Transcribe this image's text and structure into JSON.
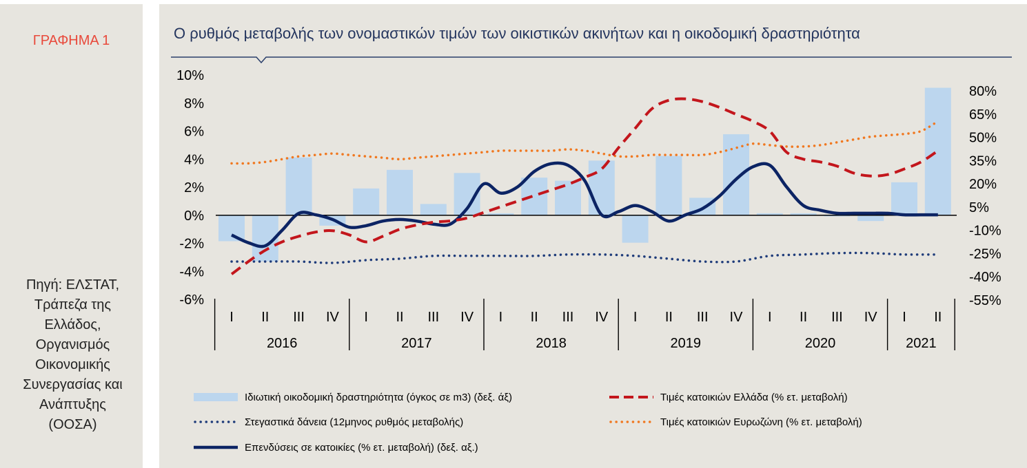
{
  "figure_label": "ΓΡΑΦΗΜΑ 1",
  "source_lines": [
    "Πηγή: ΕΛΣΤΑΤ,",
    "Τράπεζα της",
    "Ελλάδος,",
    "Οργανισμός",
    "Οικονομικής",
    "Συνεργασίας και",
    "Ανάπτυξης",
    "(ΟΟΣΑ)"
  ],
  "colors": {
    "panel_bg": "#e7e5df",
    "title": "#24355e",
    "figure_label": "#e8493b",
    "bars": "#bcd6ee",
    "greece": "#c3161c",
    "eurozone": "#f07820",
    "investment": "#0c2464",
    "loans": "#1f3c7a"
  },
  "chart_data": {
    "type": "bar",
    "title": "Ο ρυθμός μεταβολής των ονομαστικών τιμών των οικιστικών ακινήτων και η οικοδομική δραστηριότητα",
    "xlabel": "",
    "ylabel": "",
    "left_axis": {
      "ticks": [
        "10%",
        "8%",
        "6%",
        "4%",
        "2%",
        "0%",
        "-2%",
        "-4%",
        "-6%"
      ],
      "range": [
        -0.06,
        0.1
      ]
    },
    "right_axis": {
      "ticks": [
        "80%",
        "65%",
        "50%",
        "35%",
        "20%",
        "5%",
        "-10%",
        "-25%",
        "-40%",
        "-55%"
      ],
      "range": [
        -0.55,
        0.8
      ]
    },
    "quarters": [
      "I",
      "II",
      "III",
      "IV",
      "I",
      "II",
      "III",
      "IV",
      "I",
      "II",
      "III",
      "IV",
      "I",
      "II",
      "III",
      "IV",
      "I",
      "II",
      "III",
      "IV",
      "I",
      "II"
    ],
    "years": [
      {
        "label": "2016",
        "quarters": 4
      },
      {
        "label": "2017",
        "quarters": 4
      },
      {
        "label": "2018",
        "quarters": 4
      },
      {
        "label": "2019",
        "quarters": 4
      },
      {
        "label": "2020",
        "quarters": 4
      },
      {
        "label": "2021",
        "quarters": 2
      }
    ],
    "series": [
      {
        "name": "Ιδιωτική οικοδομική δραστηριότητα (όγκος σε m3) (δεξ. άξ)",
        "kind": "bar",
        "x": [
          0,
          1,
          2,
          3,
          4,
          5,
          6,
          7,
          8,
          9,
          10,
          11,
          12,
          13,
          14,
          15,
          16,
          17,
          18,
          19,
          20,
          21
        ],
        "values": [
          -0.17,
          -0.3,
          0.37,
          -0.07,
          0.17,
          0.29,
          0.07,
          0.27,
          0.01,
          0.24,
          0.22,
          0.35,
          -0.18,
          0.38,
          0.11,
          0.52,
          0.01,
          0.01,
          -0.01,
          -0.04,
          0.21,
          0.82
        ]
      },
      {
        "name": "Τιμές κατοικιών Ελλάδα (% ετ. μεταβολή)",
        "kind": "line-dashed",
        "x": [
          0,
          0.5,
          1,
          1.5,
          2,
          2.5,
          3,
          3.5,
          4,
          4.5,
          5,
          5.5,
          6,
          6.5,
          7,
          7.5,
          8,
          8.5,
          9,
          9.5,
          10,
          10.5,
          11,
          11.5,
          12,
          12.5,
          13,
          13.5,
          14,
          14.5,
          15,
          15.5,
          16,
          16.5,
          17,
          17.5,
          18,
          18.5,
          19,
          19.5,
          20,
          20.5,
          21
        ],
        "values": [
          -0.042,
          -0.033,
          -0.025,
          -0.019,
          -0.015,
          -0.012,
          -0.011,
          -0.014,
          -0.019,
          -0.015,
          -0.01,
          -0.007,
          -0.005,
          -0.004,
          -0.002,
          0.002,
          0.006,
          0.01,
          0.014,
          0.018,
          0.022,
          0.027,
          0.033,
          0.048,
          0.062,
          0.076,
          0.082,
          0.083,
          0.081,
          0.077,
          0.072,
          0.067,
          0.06,
          0.045,
          0.04,
          0.038,
          0.035,
          0.03,
          0.028,
          0.029,
          0.033,
          0.038,
          0.046
        ]
      },
      {
        "name": "Στεγαστικά δάνεια (12μηνος ρυθμός μεταβολής)",
        "kind": "line-dotted",
        "x": [
          0,
          1,
          2,
          3,
          4,
          5,
          6,
          7,
          8,
          9,
          10,
          11,
          12,
          13,
          14,
          15,
          16,
          17,
          18,
          19,
          20,
          21
        ],
        "values": [
          -0.033,
          -0.033,
          -0.033,
          -0.034,
          -0.032,
          -0.031,
          -0.029,
          -0.029,
          -0.029,
          -0.029,
          -0.028,
          -0.028,
          -0.029,
          -0.031,
          -0.033,
          -0.033,
          -0.029,
          -0.028,
          -0.027,
          -0.027,
          -0.028,
          -0.028
        ]
      },
      {
        "name": "Τιμές κατοικιών Ευρωζώνη (% ετ. μεταβολή)",
        "kind": "line-dotted",
        "x": [
          0,
          0.5,
          1,
          1.5,
          2,
          2.5,
          3,
          3.5,
          4,
          4.5,
          5,
          5.5,
          6,
          6.5,
          7,
          7.5,
          8,
          8.5,
          9,
          9.5,
          10,
          10.5,
          11,
          11.5,
          12,
          12.5,
          13,
          13.5,
          14,
          14.5,
          15,
          15.5,
          16,
          16.5,
          17,
          17.5,
          18,
          18.5,
          19,
          19.5,
          20,
          20.5,
          21
        ],
        "values": [
          0.037,
          0.037,
          0.038,
          0.04,
          0.042,
          0.043,
          0.044,
          0.043,
          0.042,
          0.041,
          0.04,
          0.041,
          0.042,
          0.043,
          0.044,
          0.045,
          0.046,
          0.046,
          0.046,
          0.046,
          0.047,
          0.046,
          0.044,
          0.042,
          0.042,
          0.043,
          0.043,
          0.043,
          0.043,
          0.045,
          0.048,
          0.051,
          0.05,
          0.049,
          0.049,
          0.05,
          0.052,
          0.054,
          0.056,
          0.057,
          0.058,
          0.06,
          0.067
        ]
      },
      {
        "name": "Επενδύσεις σε κατοικίες (% ετ. μεταβολή) (δεξ. αξ.)",
        "kind": "line-solid",
        "x": [
          0,
          0.5,
          1,
          1.5,
          2,
          2.5,
          3,
          3.5,
          4,
          4.5,
          5,
          5.5,
          6,
          6.5,
          7,
          7.5,
          8,
          8.5,
          9,
          9.5,
          10,
          10.5,
          11,
          11.5,
          12,
          12.5,
          13,
          13.5,
          14,
          14.5,
          15,
          15.5,
          16,
          16.5,
          17,
          17.5,
          18,
          18.5,
          19,
          19.5,
          20,
          20.5,
          21
        ],
        "values": [
          -0.13,
          -0.18,
          -0.2,
          -0.1,
          0.01,
          0.0,
          -0.03,
          -0.08,
          -0.07,
          -0.04,
          -0.03,
          -0.04,
          -0.06,
          -0.06,
          0.04,
          0.2,
          0.14,
          0.18,
          0.28,
          0.33,
          0.32,
          0.22,
          0.0,
          0.02,
          0.06,
          0.02,
          -0.04,
          0.0,
          0.04,
          0.12,
          0.23,
          0.31,
          0.32,
          0.18,
          0.06,
          0.03,
          0.01,
          0.01,
          0.01,
          0.01,
          0.0,
          0.0,
          0.0
        ]
      }
    ],
    "legend_position": "bottom",
    "grid": false
  }
}
